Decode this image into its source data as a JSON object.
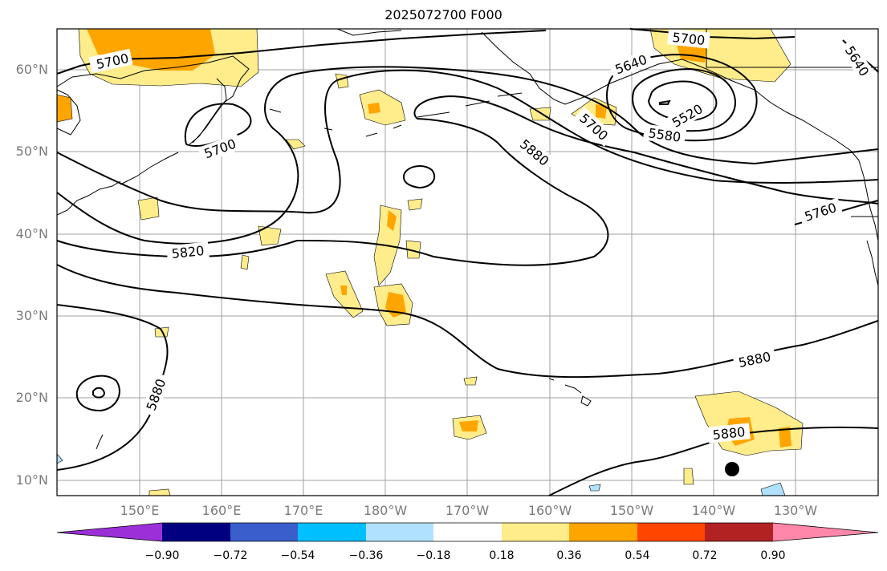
{
  "title": "2025072700 F000",
  "lat_labels": [
    "60°N",
    "50°N",
    "40°N",
    "30°N",
    "20°N",
    "10°N"
  ],
  "lon_labels": [
    "150°E",
    "160°E",
    "170°E",
    "180°W",
    "170°W",
    "160°W",
    "150°W",
    "140°W",
    "130°W"
  ],
  "contour_labels": [
    "5700",
    "5700",
    "5700",
    "5700",
    "5640",
    "5640",
    "5520",
    "5580",
    "5880",
    "5760",
    "5820",
    "5880",
    "5880",
    "5880"
  ],
  "colorbar": {
    "ticks": [
      "−0.90",
      "−0.72",
      "−0.54",
      "−0.36",
      "−0.18",
      "0.18",
      "0.36",
      "0.54",
      "0.72",
      "0.90"
    ],
    "colors": [
      "#9b30d9",
      "#000080",
      "#3a5fcd",
      "#00bfff",
      "#b0e2ff",
      "#ffffff",
      "#ffec8b",
      "#ffa500",
      "#ff4500",
      "#b22222",
      "#ff88aa"
    ]
  },
  "colors": {
    "fill_low": "#ffec8b",
    "fill_mid": "#ffa500",
    "fill_high": "#ff4500",
    "fill_neg": "#b0e2ff",
    "contour": "#000000",
    "grid": "#a0a0a0"
  }
}
